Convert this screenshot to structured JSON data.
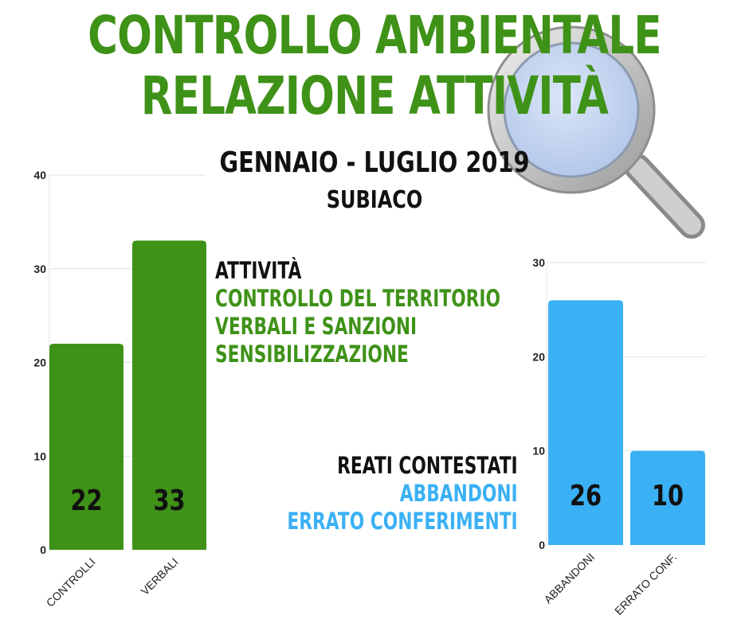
{
  "header": {
    "title_line1": "CONTROLLO AMBIENTALE",
    "title_line2": "RELAZIONE ATTIVITÀ",
    "period": "GENNAIO - LUGLIO 2019",
    "place": "SUBIACO"
  },
  "activities": {
    "heading": "ATTIVITÀ",
    "items": [
      "CONTROLLO DEL TERRITORIO",
      "VERBALI E SANZIONI",
      "SENSIBILIZZAZIONE"
    ]
  },
  "reati": {
    "heading": "REATI CONTESTATI",
    "items": [
      "ABBANDONI",
      "ERRATO CONFERIMENTI"
    ]
  },
  "colors": {
    "green": "#3f9218",
    "blue": "#3ab0f5",
    "magnifier_icon": "magnifier-icon"
  },
  "chart_data": [
    {
      "type": "bar",
      "categories": [
        "CONTROLLI",
        "VERBALI"
      ],
      "values": [
        22,
        33
      ],
      "yticks": [
        "0",
        "10",
        "20",
        "30",
        "40"
      ],
      "ylim": [
        0,
        40
      ],
      "color": "#3f9218",
      "grid": true
    },
    {
      "type": "bar",
      "categories": [
        "ABBANDONI",
        "ERRATO CONF."
      ],
      "values": [
        26,
        10
      ],
      "yticks": [
        "0",
        "10",
        "20",
        "30"
      ],
      "ylim": [
        0,
        30
      ],
      "color": "#3ab0f5",
      "grid": true
    }
  ]
}
